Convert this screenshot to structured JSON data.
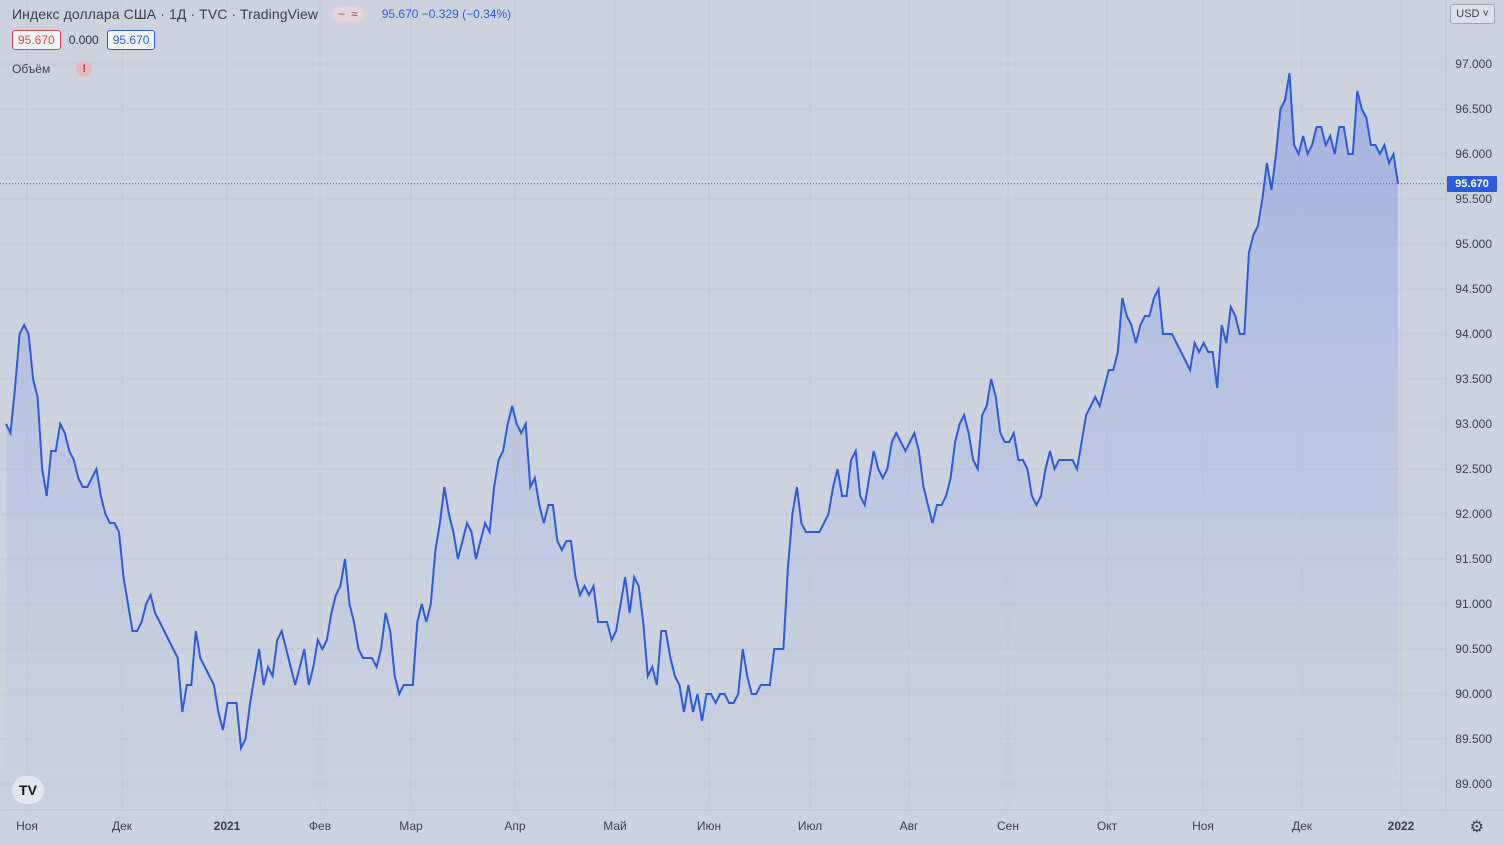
{
  "header": {
    "title": "Индекс доллара США · 1Д · TVC · TradingView",
    "pill_a": "−",
    "pill_b": "≈",
    "quote": "95.670  −0.329 (−0.34%)",
    "bid": "95.670",
    "spread": "0.000",
    "ask": "95.670",
    "volume_label": "Объём",
    "warn_icon": "!"
  },
  "currency_button": "USD ˅",
  "logo_text": "TV",
  "colors": {
    "background": "#ccd3df",
    "line": "#2e5bd8",
    "fill": "#a6b6de",
    "grid": "#bcc4d2",
    "last_price": "#2e5bd8"
  },
  "chart_data": {
    "type": "area",
    "last_value": "95.670",
    "ylim": [
      88.7,
      97.3
    ],
    "y_ticks": [
      "97.000",
      "96.500",
      "96.000",
      "95.500",
      "95.000",
      "94.500",
      "94.000",
      "93.500",
      "93.000",
      "92.500",
      "92.000",
      "91.500",
      "91.000",
      "90.500",
      "90.000",
      "89.500",
      "89.000"
    ],
    "x_ticks": [
      "Ноя",
      "Дек",
      "2021",
      "Фев",
      "Мар",
      "Апр",
      "Май",
      "Июн",
      "Июл",
      "Авг",
      "Сен",
      "Окт",
      "Ноя",
      "Дек",
      "2022"
    ],
    "series": [
      {
        "values": [
          93.0,
          92.9,
          93.4,
          94.0,
          94.1,
          94.0,
          93.5,
          93.3,
          92.5,
          92.2,
          92.7,
          92.7,
          93.0,
          92.9,
          92.7,
          92.6,
          92.4,
          92.3,
          92.3,
          92.4,
          92.5,
          92.2,
          92.0,
          91.9,
          91.9,
          91.8,
          91.3,
          91.0,
          90.7,
          90.7,
          90.8,
          91.0,
          91.1,
          90.9,
          90.8,
          90.7,
          90.6,
          90.5,
          90.4,
          89.8,
          90.1,
          90.1,
          90.7,
          90.4,
          90.3,
          90.2,
          90.1,
          89.8,
          89.6,
          89.9,
          89.9,
          89.9,
          89.4,
          89.5,
          89.9,
          90.2,
          90.5,
          90.1,
          90.3,
          90.2,
          90.6,
          90.7,
          90.5,
          90.3,
          90.1,
          90.3,
          90.5,
          90.1,
          90.3,
          90.6,
          90.5,
          90.6,
          90.9,
          91.1,
          91.2,
          91.5,
          91.0,
          90.8,
          90.5,
          90.4,
          90.4,
          90.4,
          90.3,
          90.5,
          90.9,
          90.7,
          90.2,
          90.0,
          90.1,
          90.1,
          90.1,
          90.8,
          91.0,
          90.8,
          91.0,
          91.6,
          91.9,
          92.3,
          92.0,
          91.8,
          91.5,
          91.7,
          91.9,
          91.8,
          91.5,
          91.7,
          91.9,
          91.8,
          92.3,
          92.6,
          92.7,
          93.0,
          93.2,
          93.0,
          92.9,
          93.0,
          92.3,
          92.4,
          92.1,
          91.9,
          92.1,
          92.1,
          91.7,
          91.6,
          91.7,
          91.7,
          91.3,
          91.1,
          91.2,
          91.1,
          91.2,
          90.8,
          90.8,
          90.8,
          90.6,
          90.7,
          91.0,
          91.3,
          90.9,
          91.3,
          91.2,
          90.8,
          90.2,
          90.3,
          90.1,
          90.7,
          90.7,
          90.4,
          90.2,
          90.1,
          89.8,
          90.1,
          89.8,
          90.0,
          89.7,
          90.0,
          90.0,
          89.9,
          90.0,
          90.0,
          89.9,
          89.9,
          90.0,
          90.5,
          90.2,
          90.0,
          90.0,
          90.1,
          90.1,
          90.1,
          90.5,
          90.5,
          90.5,
          91.4,
          92.0,
          92.3,
          91.9,
          91.8,
          91.8,
          91.8,
          91.8,
          91.9,
          92.0,
          92.3,
          92.5,
          92.2,
          92.2,
          92.6,
          92.7,
          92.2,
          92.1,
          92.4,
          92.7,
          92.5,
          92.4,
          92.5,
          92.8,
          92.9,
          92.8,
          92.7,
          92.8,
          92.9,
          92.7,
          92.3,
          92.1,
          91.9,
          92.1,
          92.1,
          92.2,
          92.4,
          92.8,
          93.0,
          93.1,
          92.9,
          92.6,
          92.5,
          93.1,
          93.2,
          93.5,
          93.3,
          92.9,
          92.8,
          92.8,
          92.9,
          92.6,
          92.6,
          92.5,
          92.2,
          92.1,
          92.2,
          92.5,
          92.7,
          92.5,
          92.6,
          92.6,
          92.6,
          92.6,
          92.5,
          92.8,
          93.1,
          93.2,
          93.3,
          93.2,
          93.4,
          93.6,
          93.6,
          93.8,
          94.4,
          94.2,
          94.1,
          93.9,
          94.1,
          94.2,
          94.2,
          94.4,
          94.5,
          94.0,
          94.0,
          94.0,
          93.9,
          93.8,
          93.7,
          93.6,
          93.9,
          93.8,
          93.9,
          93.8,
          93.8,
          93.4,
          94.1,
          93.9,
          94.3,
          94.2,
          94.0,
          94.0,
          94.9,
          95.1,
          95.2,
          95.5,
          95.9,
          95.6,
          96.0,
          96.5,
          96.6,
          96.9,
          96.1,
          96.0,
          96.2,
          96.0,
          96.1,
          96.3,
          96.3,
          96.1,
          96.2,
          96.0,
          96.3,
          96.3,
          96.0,
          96.0,
          96.7,
          96.5,
          96.4,
          96.1,
          96.1,
          96.0,
          96.1,
          95.9,
          96.0,
          95.67
        ]
      }
    ]
  }
}
